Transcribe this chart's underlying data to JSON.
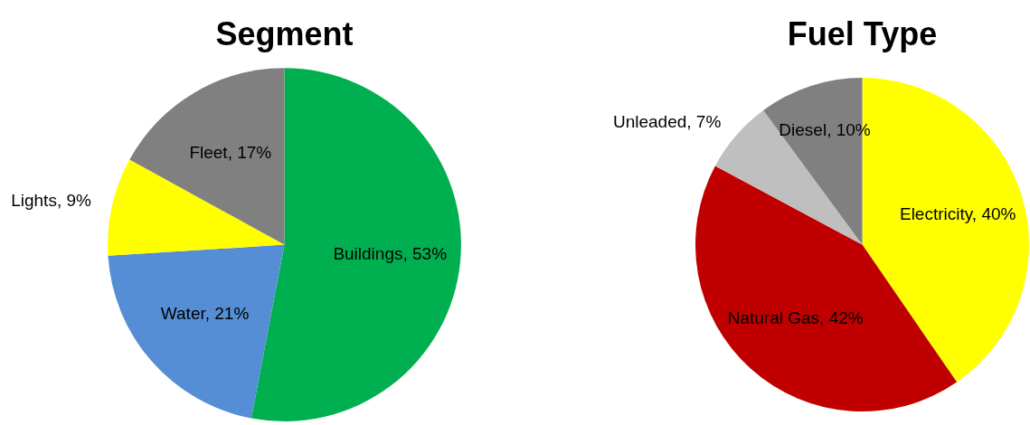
{
  "chart_data": [
    {
      "type": "pie",
      "title": "Segment",
      "categories": [
        "Buildings",
        "Water",
        "Lights",
        "Fleet"
      ],
      "values": [
        53,
        21,
        9,
        17
      ],
      "value_labels": [
        "53%",
        "21%",
        "9%",
        "17%"
      ],
      "colors": [
        "#00b050",
        "#558ed5",
        "#ffff00",
        "#808080"
      ],
      "legend": false
    },
    {
      "type": "pie",
      "title": "Fuel Type",
      "categories": [
        "Electricity",
        "Natural Gas",
        "Unleaded",
        "Diesel"
      ],
      "values": [
        40,
        42,
        7,
        10
      ],
      "value_labels": [
        "40%",
        "42%",
        "7%",
        "10%"
      ],
      "colors": [
        "#ffff00",
        "#c00000",
        "#bfbfbf",
        "#808080"
      ],
      "legend": false
    }
  ]
}
